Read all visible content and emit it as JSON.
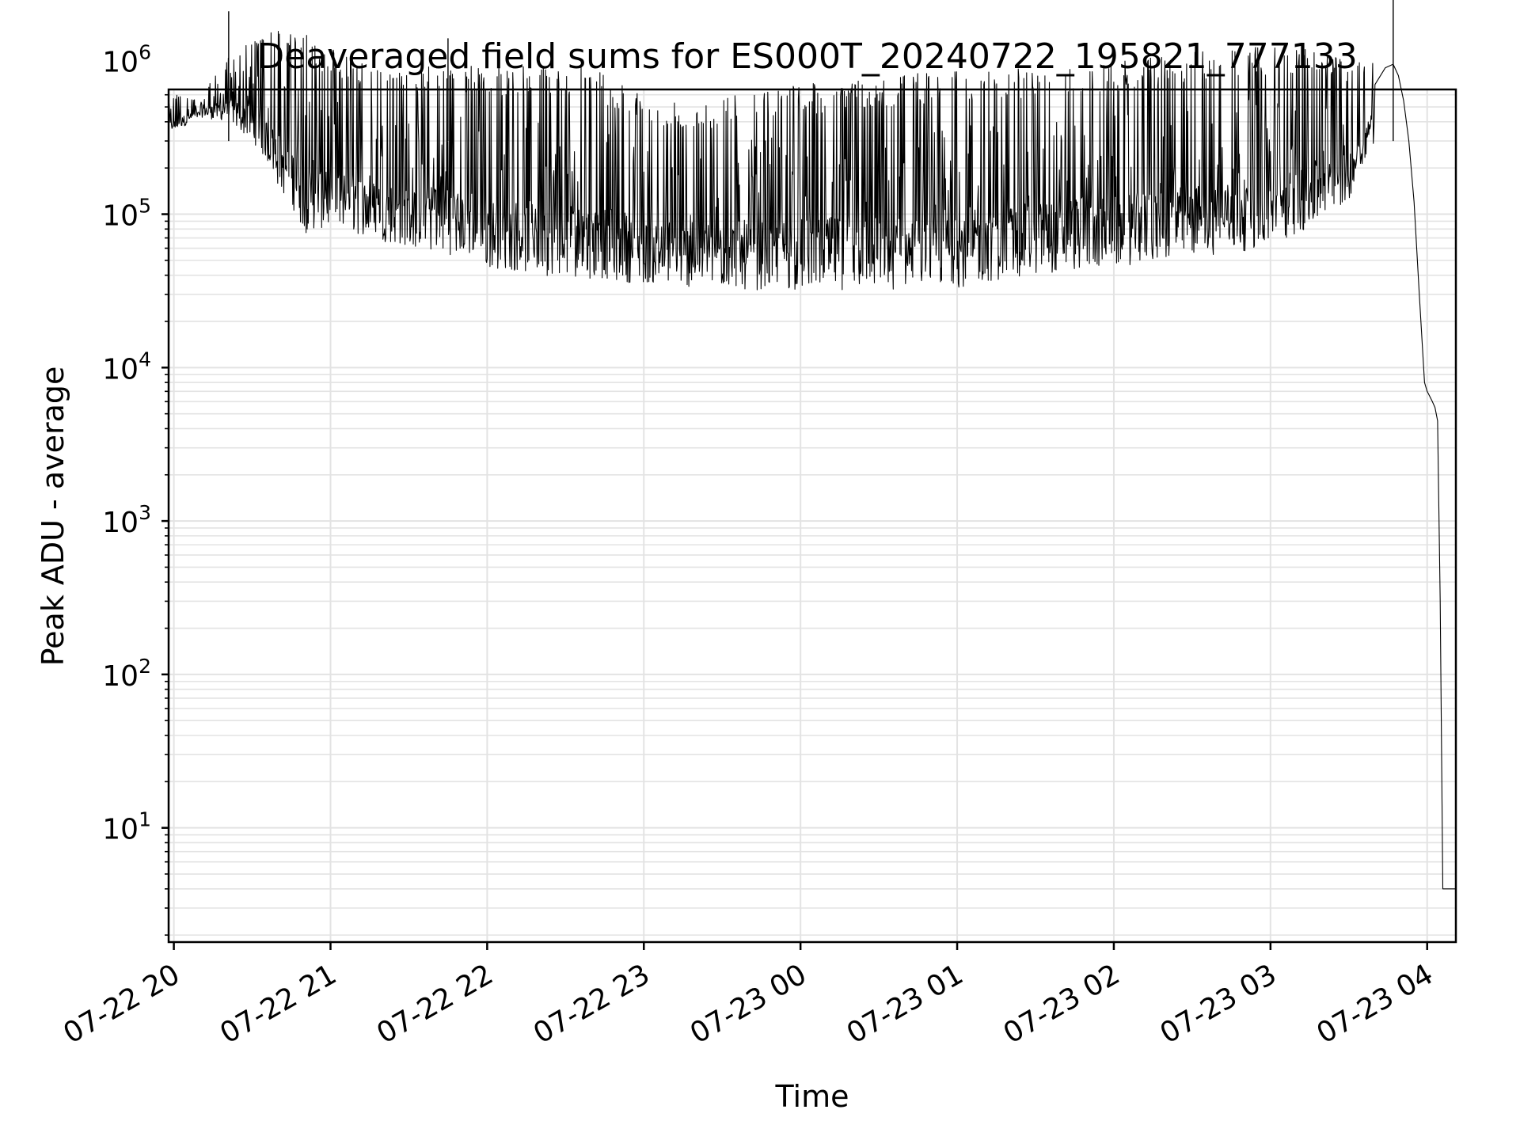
{
  "chart_data": {
    "type": "line",
    "title": "Deaveraged field sums for ES000T_20240722_195821_777133",
    "xlabel": "Time",
    "ylabel": "Peak ADU - average",
    "y_scale": "log",
    "ylim": [
      1.8,
      650000
    ],
    "xlim": [
      "2024-07-22 19:58",
      "2024-07-23 04:11"
    ],
    "grid": true,
    "grid_minor": true,
    "line_color": "#000000",
    "grid_color": "#e3e3e3",
    "x_ticks": [
      {
        "value": "2024-07-22 20:00",
        "label": "07-22 20"
      },
      {
        "value": "2024-07-22 21:00",
        "label": "07-22 21"
      },
      {
        "value": "2024-07-22 22:00",
        "label": "07-22 22"
      },
      {
        "value": "2024-07-22 23:00",
        "label": "07-22 23"
      },
      {
        "value": "2024-07-23 00:00",
        "label": "07-23 00"
      },
      {
        "value": "2024-07-23 01:00",
        "label": "07-23 01"
      },
      {
        "value": "2024-07-23 02:00",
        "label": "07-23 02"
      },
      {
        "value": "2024-07-23 03:00",
        "label": "07-23 03"
      },
      {
        "value": "2024-07-23 04:00",
        "label": "07-23 04"
      }
    ],
    "y_ticks": [
      {
        "value": 10,
        "base": "10",
        "exp": "1"
      },
      {
        "value": 100,
        "base": "10",
        "exp": "2"
      },
      {
        "value": 1000,
        "base": "10",
        "exp": "3"
      },
      {
        "value": 10000,
        "base": "10",
        "exp": "4"
      },
      {
        "value": 100000,
        "base": "10",
        "exp": "5"
      },
      {
        "value": 1000000,
        "base": "10",
        "exp": "6"
      }
    ],
    "series": [
      {
        "envelope": [
          {
            "t": "2024-07-22 19:58",
            "low": 320000,
            "high": 620000
          },
          {
            "t": "2024-07-22 20:10",
            "low": 430000,
            "high": 560000
          },
          {
            "t": "2024-07-22 20:20",
            "low": 400000,
            "high": 1000000
          },
          {
            "t": "2024-07-22 20:30",
            "low": 300000,
            "high": 1500000
          },
          {
            "t": "2024-07-22 20:40",
            "low": 150000,
            "high": 1600000
          },
          {
            "t": "2024-07-22 20:50",
            "low": 75000,
            "high": 1500000
          },
          {
            "t": "2024-07-22 21:00",
            "low": 80000,
            "high": 1200000
          },
          {
            "t": "2024-07-22 21:15",
            "low": 70000,
            "high": 900000
          },
          {
            "t": "2024-07-22 21:30",
            "low": 60000,
            "high": 900000
          },
          {
            "t": "2024-07-22 21:45",
            "low": 55000,
            "high": 1000000
          },
          {
            "t": "2024-07-22 22:00",
            "low": 45000,
            "high": 900000
          },
          {
            "t": "2024-07-22 22:20",
            "low": 40000,
            "high": 950000
          },
          {
            "t": "2024-07-22 22:40",
            "low": 38000,
            "high": 900000
          },
          {
            "t": "2024-07-22 23:00",
            "low": 35000,
            "high": 600000
          },
          {
            "t": "2024-07-22 23:20",
            "low": 33000,
            "high": 500000
          },
          {
            "t": "2024-07-22 23:40",
            "low": 32000,
            "high": 650000
          },
          {
            "t": "2024-07-23 00:00",
            "low": 32000,
            "high": 700000
          },
          {
            "t": "2024-07-23 00:20",
            "low": 32000,
            "high": 750000
          },
          {
            "t": "2024-07-23 00:40",
            "low": 31000,
            "high": 820000
          },
          {
            "t": "2024-07-23 01:00",
            "low": 33000,
            "high": 850000
          },
          {
            "t": "2024-07-23 01:20",
            "low": 38000,
            "high": 900000
          },
          {
            "t": "2024-07-23 01:40",
            "low": 42000,
            "high": 950000
          },
          {
            "t": "2024-07-23 02:00",
            "low": 45000,
            "high": 1000000
          },
          {
            "t": "2024-07-23 02:20",
            "low": 50000,
            "high": 1100000
          },
          {
            "t": "2024-07-23 02:40",
            "low": 55000,
            "high": 1200000
          },
          {
            "t": "2024-07-23 03:00",
            "low": 60000,
            "high": 1250000
          },
          {
            "t": "2024-07-23 03:15",
            "low": 80000,
            "high": 1200000
          },
          {
            "t": "2024-07-23 03:30",
            "low": 120000,
            "high": 1000000
          },
          {
            "t": "2024-07-23 03:40",
            "low": 300000,
            "high": 1000000
          }
        ],
        "x": [
          "2024-07-23 03:40",
          "2024-07-23 03:44",
          "2024-07-23 03:47",
          "2024-07-23 03:49",
          "2024-07-23 03:51",
          "2024-07-23 03:53",
          "2024-07-23 03:55",
          "2024-07-23 03:57",
          "2024-07-23 03:59",
          "2024-07-23 04:00",
          "2024-07-23 04:01",
          "2024-07-23 04:02",
          "2024-07-23 04:03",
          "2024-07-23 04:04",
          "2024-07-23 04:05",
          "2024-07-23 04:06",
          "2024-07-23 04:07",
          "2024-07-23 04:08",
          "2024-07-23 04:09",
          "2024-07-23 04:10",
          "2024-07-23 04:11"
        ],
        "y": [
          700000,
          900000,
          950000,
          800000,
          550000,
          300000,
          120000,
          30000,
          8000,
          7000,
          6500,
          6000,
          5500,
          4500,
          300,
          4,
          4,
          4,
          4,
          4,
          4
        ],
        "spikes": [
          {
            "t": "2024-07-22 20:21",
            "y": 2100000
          },
          {
            "t": "2024-07-22 21:45",
            "y": 1400000
          },
          {
            "t": "2024-07-23 03:47",
            "y": 3400000
          }
        ]
      }
    ]
  }
}
